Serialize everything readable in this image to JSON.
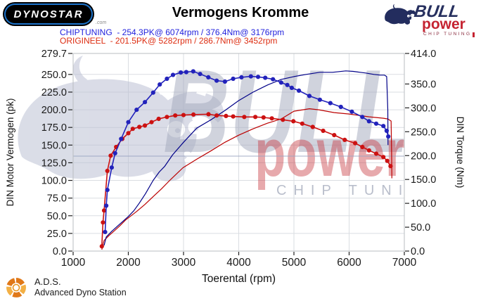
{
  "header": {
    "dynostar": {
      "text": "DYNOSTAR",
      "suffix": ".com"
    },
    "title": "Vermogens Kromme",
    "info_lines": [
      {
        "name": "chiptuning",
        "color": "#2222dd",
        "text": "CHIPTUNING  - 254.3PK@ 6074rpm / 376.4Nm@ 3176rpm"
      },
      {
        "name": "origineel",
        "color": "#dd2d11",
        "text": "ORIGINEEL  - 201.5PK@ 5282rpm / 286.7Nm@ 3452rpm"
      }
    ],
    "bullpower": {
      "line1": "BULL",
      "line2": "power",
      "line3": "CHIP TUNING"
    }
  },
  "footer": {
    "ads_abbr": "A.D.S.",
    "ads_name": "Advanced Dyno Station"
  },
  "chart_data": {
    "type": "line",
    "title": "Vermogens Kromme",
    "xlabel": "Toerental (rpm)",
    "ylabel_left": "DIN Motor Vermogen (pk)",
    "ylabel_right": "DIN Torque (Nm)",
    "xlim": [
      1000,
      7000
    ],
    "x_ticks": [
      1000,
      2000,
      3000,
      4000,
      5000,
      6000,
      7000
    ],
    "ylim_left": [
      0,
      279.7
    ],
    "left_ticks": [
      0,
      25,
      50,
      75,
      100,
      125,
      150,
      175,
      200,
      225,
      250,
      279.7
    ],
    "ylim_right": [
      0,
      414
    ],
    "right_ticks": [
      0,
      50,
      100,
      150,
      200,
      250,
      300,
      350,
      414
    ],
    "grid": "on",
    "legend": "none",
    "peaks": {
      "chiptuning": {
        "pk": 254.3,
        "pk_rpm": 6074,
        "nm": 376.4,
        "nm_rpm": 3176
      },
      "origineel": {
        "pk": 201.5,
        "pk_rpm": 5282,
        "nm": 286.7,
        "nm_rpm": 3452
      }
    },
    "watermark": {
      "line1": "BULL",
      "line2": "power",
      "line3": "CHIP TUNING"
    },
    "series": [
      {
        "name": "origineel-power-pk",
        "axis": "left",
        "color": "#bb0000",
        "width": 1.2,
        "markers": false,
        "points": [
          [
            1520,
            2
          ],
          [
            1560,
            15
          ],
          [
            1650,
            22
          ],
          [
            1750,
            29
          ],
          [
            1850,
            36
          ],
          [
            1950,
            44
          ],
          [
            2050,
            50
          ],
          [
            2150,
            56
          ],
          [
            2300,
            66
          ],
          [
            2450,
            77
          ],
          [
            2600,
            88
          ],
          [
            2750,
            100
          ],
          [
            2990,
            118
          ],
          [
            3240,
            130
          ],
          [
            3500,
            142
          ],
          [
            3750,
            154
          ],
          [
            4000,
            164
          ],
          [
            4260,
            173
          ],
          [
            4520,
            181
          ],
          [
            4770,
            187
          ],
          [
            5000,
            198
          ],
          [
            5282,
            201.5
          ],
          [
            5450,
            200
          ],
          [
            5730,
            196
          ],
          [
            6000,
            194
          ],
          [
            6360,
            190
          ],
          [
            6620,
            188
          ],
          [
            6700,
            187
          ],
          [
            6760,
            184
          ],
          [
            6770,
            140
          ],
          [
            6775,
            103
          ]
        ]
      },
      {
        "name": "chiptuning-power-pk",
        "axis": "left",
        "color": "#000088",
        "width": 1.2,
        "markers": false,
        "points": [
          [
            1560,
            8
          ],
          [
            1600,
            20
          ],
          [
            1700,
            28
          ],
          [
            1800,
            35
          ],
          [
            1900,
            42
          ],
          [
            2000,
            49
          ],
          [
            2100,
            57
          ],
          [
            2200,
            68
          ],
          [
            2310,
            81
          ],
          [
            2450,
            100
          ],
          [
            2560,
            112
          ],
          [
            2660,
            120
          ],
          [
            2800,
            136
          ],
          [
            3000,
            154
          ],
          [
            3240,
            174
          ],
          [
            3500,
            186
          ],
          [
            3750,
            199
          ],
          [
            4000,
            213
          ],
          [
            4260,
            225
          ],
          [
            4520,
            235
          ],
          [
            4770,
            243
          ],
          [
            5000,
            247
          ],
          [
            5220,
            250
          ],
          [
            5470,
            253
          ],
          [
            5700,
            253
          ],
          [
            5940,
            255
          ],
          [
            6074,
            254.3
          ],
          [
            6200,
            253
          ],
          [
            6300,
            252
          ],
          [
            6450,
            250
          ],
          [
            6560,
            249
          ],
          [
            6640,
            249
          ],
          [
            6680,
            247
          ],
          [
            6700,
            200
          ],
          [
            6705,
            150
          ]
        ]
      },
      {
        "name": "origineel-torque-nm",
        "axis": "right",
        "color": "#cc1111",
        "width": 1.6,
        "markers": true,
        "points": [
          [
            1520,
            10
          ],
          [
            1540,
            60
          ],
          [
            1560,
            85
          ],
          [
            1620,
            168
          ],
          [
            1680,
            200
          ],
          [
            1780,
            218
          ],
          [
            1890,
            235
          ],
          [
            2000,
            247
          ],
          [
            2080,
            256
          ],
          [
            2200,
            260
          ],
          [
            2300,
            263
          ],
          [
            2420,
            270
          ],
          [
            2550,
            277
          ],
          [
            2700,
            281
          ],
          [
            2850,
            284
          ],
          [
            3000,
            285
          ],
          [
            3180,
            286
          ],
          [
            3452,
            286.7
          ],
          [
            3600,
            284
          ],
          [
            3770,
            283
          ],
          [
            3900,
            282
          ],
          [
            4100,
            281
          ],
          [
            4300,
            281
          ],
          [
            4450,
            280
          ],
          [
            4600,
            278
          ],
          [
            4800,
            275
          ],
          [
            4990,
            272
          ],
          [
            5150,
            267
          ],
          [
            5340,
            260
          ],
          [
            5530,
            252
          ],
          [
            5730,
            243
          ],
          [
            5920,
            233
          ],
          [
            6110,
            226
          ],
          [
            6240,
            218
          ],
          [
            6360,
            211
          ],
          [
            6490,
            204
          ],
          [
            6620,
            197
          ],
          [
            6690,
            189
          ],
          [
            6750,
            178
          ]
        ]
      },
      {
        "name": "chiptuning-torque-nm",
        "axis": "right",
        "color": "#2222bb",
        "width": 1.6,
        "markers": true,
        "points": [
          [
            1580,
            40
          ],
          [
            1600,
            95
          ],
          [
            1620,
            128
          ],
          [
            1700,
            175
          ],
          [
            1760,
            205
          ],
          [
            1870,
            235
          ],
          [
            2000,
            270
          ],
          [
            2150,
            296
          ],
          [
            2300,
            312
          ],
          [
            2450,
            332
          ],
          [
            2570,
            349
          ],
          [
            2700,
            361
          ],
          [
            2810,
            369
          ],
          [
            2950,
            374
          ],
          [
            3050,
            375
          ],
          [
            3176,
            376.4
          ],
          [
            3300,
            371
          ],
          [
            3450,
            364
          ],
          [
            3600,
            357
          ],
          [
            3750,
            355
          ],
          [
            3900,
            361
          ],
          [
            4050,
            364
          ],
          [
            4220,
            366
          ],
          [
            4350,
            365
          ],
          [
            4480,
            363
          ],
          [
            4620,
            360
          ],
          [
            4770,
            353
          ],
          [
            4880,
            348
          ],
          [
            4960,
            342
          ],
          [
            5090,
            336
          ],
          [
            5280,
            325
          ],
          [
            5470,
            317
          ],
          [
            5660,
            310
          ],
          [
            5850,
            302
          ],
          [
            6050,
            292
          ],
          [
            6240,
            281
          ],
          [
            6360,
            272
          ],
          [
            6490,
            267
          ],
          [
            6620,
            262
          ],
          [
            6680,
            252
          ],
          [
            6710,
            240
          ]
        ]
      }
    ]
  }
}
